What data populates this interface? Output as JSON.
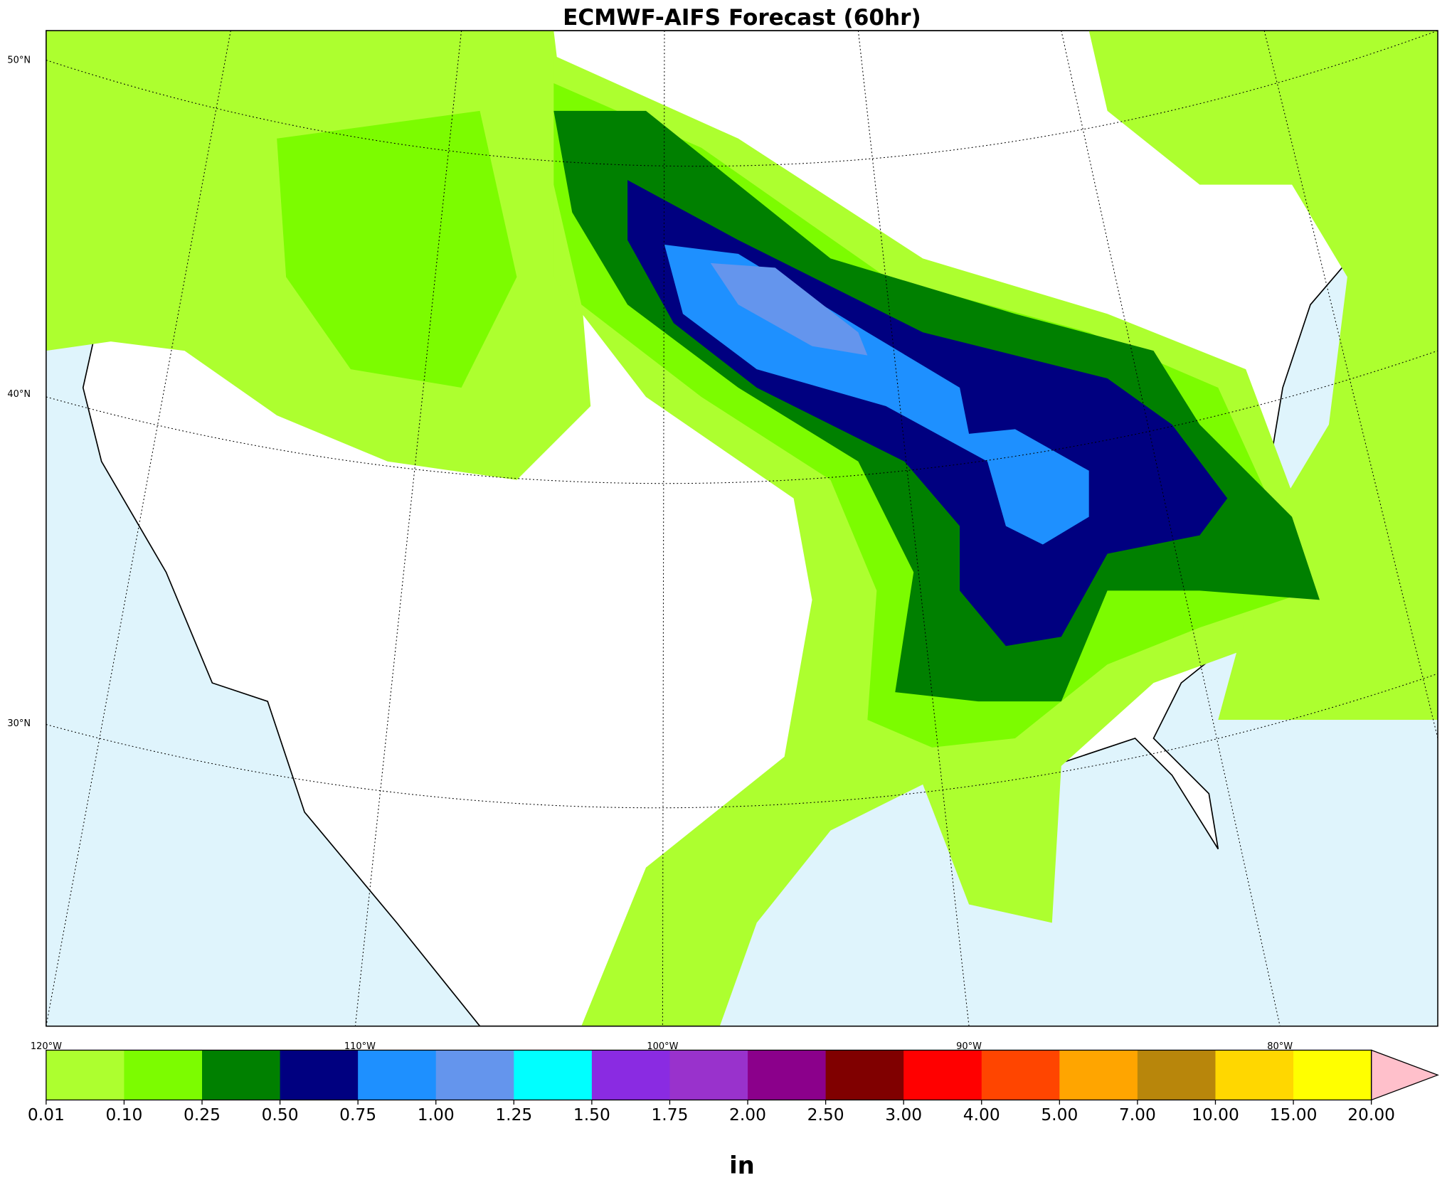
{
  "title": "ECMWF-AIFS Forecast (60hr)",
  "map": {
    "lat_labels": [
      "50°N",
      "40°N",
      "30°N"
    ],
    "lon_labels": [
      "120°W",
      "110°W",
      "100°W",
      "90°W",
      "80°W"
    ]
  },
  "colorbar": {
    "levels": [
      {
        "value": 0.01,
        "label": "0.01"
      },
      {
        "value": 0.1,
        "label": "0.10"
      },
      {
        "value": 0.25,
        "label": "0.25"
      },
      {
        "value": 0.5,
        "label": "0.50"
      },
      {
        "value": 0.75,
        "label": "0.75"
      },
      {
        "value": 1,
        "label": "1.00"
      },
      {
        "value": 1.25,
        "label": "1.25"
      },
      {
        "value": 1.5,
        "label": "1.50"
      },
      {
        "value": 1.75,
        "label": "1.75"
      },
      {
        "value": 2,
        "label": "2.00"
      },
      {
        "value": 2.5,
        "label": "2.50"
      },
      {
        "value": 3,
        "label": "3.00"
      },
      {
        "value": 4,
        "label": "4.00"
      },
      {
        "value": 5,
        "label": "5.00"
      },
      {
        "value": 7,
        "label": "7.00"
      },
      {
        "value": 10,
        "label": "10.00"
      },
      {
        "value": 15,
        "label": "15.00"
      },
      {
        "value": 20,
        "label": "20.00"
      }
    ],
    "colors": [
      "#adff2f",
      "#7cfc00",
      "#008000",
      "#000080",
      "#1e90ff",
      "#6495ed",
      "#00ffff",
      "#8a2be2",
      "#9932cc",
      "#8b008b",
      "#800000",
      "#ff0000",
      "#ff4500",
      "#ffa500",
      "#b8860b",
      "#ffd700",
      "#ffff00"
    ],
    "extend_color": "#ffc0cb",
    "unit": "in"
  }
}
